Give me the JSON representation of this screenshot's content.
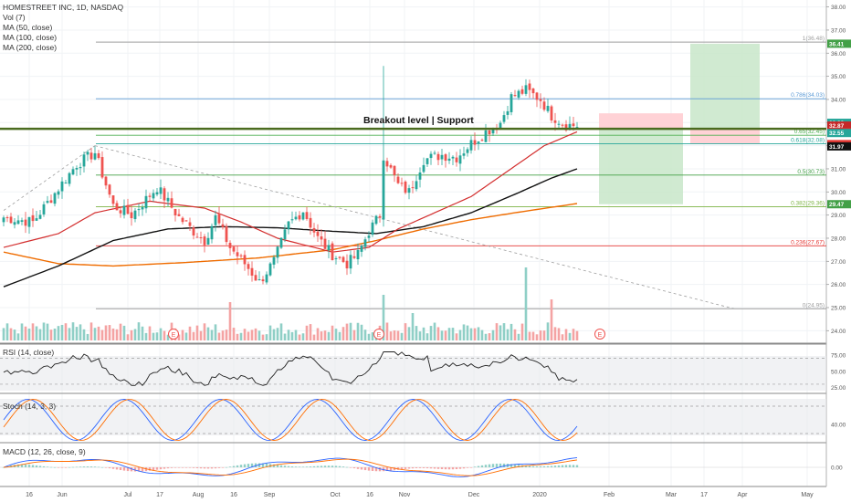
{
  "header": {
    "symbol_line": "HOMESTREET INC, 1D, NASDAQ",
    "indicators": [
      "Vol (7)",
      "MA (50, close)",
      "MA (100, close)",
      "MA (200, close)"
    ]
  },
  "annotation": {
    "text": "Breakout level | Support"
  },
  "panes": {
    "rsi_label": "RSI (14, close)",
    "stoch_label": "Stoch (14, 3, 3)",
    "macd_label": "MACD (12, 26, close, 9)"
  },
  "events": {
    "earnings_marker": "E"
  },
  "colors": {
    "up": "#26a69a",
    "down": "#ef5350",
    "vol_up": "#8fcfc6",
    "vol_down": "#f4a3a3",
    "ma50": "#d32f2f",
    "ma100": "#111111",
    "ma200": "#ef6c00",
    "breakout": "#4a6b1f",
    "fib_1": "#9e9e9e",
    "fib_786": "#5c9bd6",
    "fib_65": "#4caf50",
    "fib_618": "#26a69a",
    "fib_5": "#43a047",
    "fib_382": "#7cb342",
    "fib_236": "#e53935",
    "fib_0": "#9e9e9e",
    "rsi": "#222222",
    "stoch_k": "#2962ff",
    "stoch_d": "#ff6d00",
    "macd": "#2962ff",
    "signal": "#ff6d00",
    "target_zone": "#c8e6c9",
    "stop_zone": "#ffcdd2"
  },
  "chart_data": {
    "type": "candlestick",
    "title": "HOMESTREET INC, 1D, NASDAQ",
    "x_ticks": [
      "16",
      "Jun",
      "Jul",
      "17",
      "Aug",
      "16",
      "Sep",
      "Oct",
      "16",
      "Nov",
      "Dec",
      "2020",
      "Feb",
      "Mar",
      "17",
      "Apr",
      "May"
    ],
    "y_axis": {
      "range": [
        23.5,
        38.3
      ],
      "ticks": [
        "38.00",
        "37.00",
        "36.00",
        "35.00",
        "34.00",
        "33.00",
        "32.00",
        "31.00",
        "30.00",
        "29.00",
        "28.00",
        "27.00",
        "26.00",
        "25.00",
        "24.00"
      ]
    },
    "price_labels": [
      {
        "text": "36.41",
        "value": 36.41,
        "color": "#43a047"
      },
      {
        "text": "32.99",
        "value": 32.99,
        "color": "#26a69a"
      },
      {
        "text": "32.87",
        "value": 32.87,
        "color": "#c62828"
      },
      {
        "text": "32.60",
        "value": 32.6,
        "color": "#d32f2f"
      },
      {
        "text": "32.55",
        "value": 32.55,
        "color": "#26a69a"
      },
      {
        "text": "32.07",
        "value": 32.07,
        "color": "#e53935"
      },
      {
        "text": "31.97",
        "value": 31.97,
        "color": "#111111"
      },
      {
        "text": "29.47",
        "value": 29.47,
        "color": "#43a047"
      }
    ],
    "breakout_level": 32.73,
    "fib_levels": [
      {
        "label": "1(36.48)",
        "value": 36.48,
        "color": "#9e9e9e"
      },
      {
        "label": "0.786(34.03)",
        "value": 34.03,
        "color": "#5c9bd6"
      },
      {
        "label": "0.65(32.45)",
        "value": 32.45,
        "color": "#4caf50"
      },
      {
        "label": "0.618(32.08)",
        "value": 32.08,
        "color": "#26a69a"
      },
      {
        "label": "0.5(30.73)",
        "value": 30.73,
        "color": "#43a047"
      },
      {
        "label": "0.382(29.36)",
        "value": 29.36,
        "color": "#7cb342"
      },
      {
        "label": "0.236(27.67)",
        "value": 27.67,
        "color": "#e53935"
      },
      {
        "label": "0(24.95)",
        "value": 24.95,
        "color": "#9e9e9e"
      }
    ],
    "price_path_keypoints": [
      {
        "bar": 0,
        "close": 28.9
      },
      {
        "bar": 8,
        "close": 28.7
      },
      {
        "bar": 20,
        "close": 31.2
      },
      {
        "bar": 25,
        "close": 31.7
      },
      {
        "bar": 30,
        "close": 29.4
      },
      {
        "bar": 35,
        "close": 29.0
      },
      {
        "bar": 42,
        "close": 30.2
      },
      {
        "bar": 48,
        "close": 28.9
      },
      {
        "bar": 52,
        "close": 28.3
      },
      {
        "bar": 55,
        "close": 27.9
      },
      {
        "bar": 58,
        "close": 28.9
      },
      {
        "bar": 62,
        "close": 27.6
      },
      {
        "bar": 66,
        "close": 26.9
      },
      {
        "bar": 70,
        "close": 26.1
      },
      {
        "bar": 74,
        "close": 27.0
      },
      {
        "bar": 78,
        "close": 28.6
      },
      {
        "bar": 82,
        "close": 29.2
      },
      {
        "bar": 86,
        "close": 28.0
      },
      {
        "bar": 90,
        "close": 27.3
      },
      {
        "bar": 94,
        "close": 26.9
      },
      {
        "bar": 97,
        "close": 27.3
      },
      {
        "bar": 100,
        "close": 28.3
      },
      {
        "bar": 103,
        "close": 29.0
      },
      {
        "bar": 104,
        "close": 31.6
      },
      {
        "bar": 108,
        "close": 30.3
      },
      {
        "bar": 111,
        "close": 30.0
      },
      {
        "bar": 115,
        "close": 31.4
      },
      {
        "bar": 120,
        "close": 31.6
      },
      {
        "bar": 124,
        "close": 31.5
      },
      {
        "bar": 128,
        "close": 32.1
      },
      {
        "bar": 132,
        "close": 32.6
      },
      {
        "bar": 136,
        "close": 33.0
      },
      {
        "bar": 139,
        "close": 34.1
      },
      {
        "bar": 143,
        "close": 34.4
      },
      {
        "bar": 147,
        "close": 34.0
      },
      {
        "bar": 150,
        "close": 33.3
      },
      {
        "bar": 154,
        "close": 32.9
      },
      {
        "bar": 157,
        "close": 32.87
      }
    ],
    "ma_keypoints": {
      "ma50": [
        {
          "bar": 0,
          "value": 27.6
        },
        {
          "bar": 15,
          "value": 28.2
        },
        {
          "bar": 25,
          "value": 29.1
        },
        {
          "bar": 40,
          "value": 29.6
        },
        {
          "bar": 55,
          "value": 29.3
        },
        {
          "bar": 65,
          "value": 28.7
        },
        {
          "bar": 75,
          "value": 28.0
        },
        {
          "bar": 90,
          "value": 27.4
        },
        {
          "bar": 100,
          "value": 27.6
        },
        {
          "bar": 108,
          "value": 28.4
        },
        {
          "bar": 118,
          "value": 29.1
        },
        {
          "bar": 128,
          "value": 29.8
        },
        {
          "bar": 138,
          "value": 30.9
        },
        {
          "bar": 148,
          "value": 32.0
        },
        {
          "bar": 157,
          "value": 32.6
        }
      ],
      "ma100": [
        {
          "bar": 0,
          "value": 25.9
        },
        {
          "bar": 15,
          "value": 26.8
        },
        {
          "bar": 30,
          "value": 27.9
        },
        {
          "bar": 45,
          "value": 28.4
        },
        {
          "bar": 60,
          "value": 28.5
        },
        {
          "bar": 75,
          "value": 28.45
        },
        {
          "bar": 90,
          "value": 28.3
        },
        {
          "bar": 102,
          "value": 28.2
        },
        {
          "bar": 115,
          "value": 28.5
        },
        {
          "bar": 128,
          "value": 29.1
        },
        {
          "bar": 140,
          "value": 29.9
        },
        {
          "bar": 150,
          "value": 30.6
        },
        {
          "bar": 157,
          "value": 31.0
        }
      ],
      "ma200": [
        {
          "bar": 0,
          "value": 27.4
        },
        {
          "bar": 15,
          "value": 26.9
        },
        {
          "bar": 30,
          "value": 26.8
        },
        {
          "bar": 50,
          "value": 26.95
        },
        {
          "bar": 70,
          "value": 27.15
        },
        {
          "bar": 90,
          "value": 27.5
        },
        {
          "bar": 102,
          "value": 27.9
        },
        {
          "bar": 115,
          "value": 28.4
        },
        {
          "bar": 128,
          "value": 28.8
        },
        {
          "bar": 140,
          "value": 29.1
        },
        {
          "bar": 157,
          "value": 29.5
        }
      ]
    },
    "spike_bar": {
      "bar": 104,
      "high": 35.45,
      "low": 28.5
    },
    "trendlines": [
      {
        "from_bar": 0,
        "from_value": 29.2,
        "to_bar": 25,
        "to_value": 32.0
      },
      {
        "from_bar": 25,
        "from_value": 32.0,
        "to_bar": 200,
        "to_value": 24.95
      }
    ],
    "positions": [
      {
        "kind": "short",
        "start_bar": 163,
        "end_bar": 186,
        "entry": 32.73,
        "stop": 33.4,
        "target": 29.47
      },
      {
        "kind": "long",
        "start_bar": 188,
        "end_bar": 207,
        "entry": 32.73,
        "stop": 32.07,
        "target": 36.41
      }
    ],
    "rsi": {
      "ticks": [
        "75.00",
        "50.00",
        "25.00"
      ],
      "range": [
        20,
        85
      ],
      "bands": [
        70,
        30
      ]
    },
    "stoch": {
      "ticks": [
        "40.00"
      ],
      "range": [
        0,
        100
      ],
      "bands": [
        80,
        20
      ]
    },
    "macd": {
      "ticks": [
        "0.00"
      ],
      "range": [
        -1.0,
        0.8
      ]
    }
  }
}
